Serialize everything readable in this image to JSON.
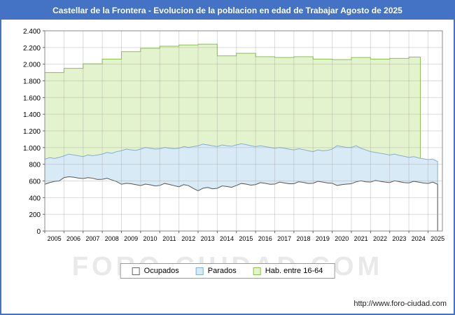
{
  "title_bar": {
    "text": "Castellar de la Frontera - Evolucion de la poblacion en edad de Trabajar Agosto de 2025",
    "bg_color": "#4472c4"
  },
  "watermark": "FORO-CIUDAD.COM",
  "footer": {
    "url": "http://www.foro-ciudad.com"
  },
  "legend": {
    "items": [
      {
        "label": "Ocupados",
        "fill": "#ffffff",
        "stroke": "#666666"
      },
      {
        "label": "Parados",
        "fill": "#d9eaf7",
        "stroke": "#85aecf"
      },
      {
        "label": "Hab. entre 16-64",
        "fill": "#e3f3cd",
        "stroke": "#8cc152"
      }
    ]
  },
  "chart_data": {
    "type": "area",
    "title": "Castellar de la Frontera - Evolucion de la poblacion en edad de Trabajar Agosto de 2025",
    "xlabel": "",
    "ylabel": "",
    "xlim": [
      2005,
      2025.75
    ],
    "ylim": [
      0,
      2400
    ],
    "grid": true,
    "legend_position": "bottom",
    "x_ticks": [
      2005,
      2006,
      2007,
      2008,
      2009,
      2010,
      2011,
      2012,
      2013,
      2014,
      2015,
      2016,
      2017,
      2018,
      2019,
      2020,
      2021,
      2022,
      2023,
      2024,
      2025
    ],
    "y_ticks": [
      0,
      200,
      400,
      600,
      800,
      1000,
      1200,
      1400,
      1600,
      1800,
      2000,
      2200,
      2400
    ],
    "y_tick_labels": [
      "0",
      "200",
      "400",
      "600",
      "800",
      "1.000",
      "1.200",
      "1.400",
      "1.600",
      "1.800",
      "2.000",
      "2.200",
      "2.400"
    ],
    "series": [
      {
        "name": "Hab. entre 16-64",
        "kind": "step",
        "x_start": 2005,
        "x_step": 1,
        "end_x": 2024.6,
        "fill": "#e3f3cd",
        "stroke": "#8cc152",
        "values": [
          1900,
          1950,
          2005,
          2060,
          2150,
          2190,
          2215,
          2230,
          2240,
          2100,
          2130,
          2090,
          2080,
          2090,
          2060,
          2055,
          2080,
          2060,
          2070,
          2085
        ]
      },
      {
        "name": "Parados",
        "kind": "line",
        "x_start": 2005,
        "x_step": 0.25,
        "fill": "#d9eaf7",
        "stroke": "#85aecf",
        "values": [
          860,
          880,
          870,
          882,
          900,
          922,
          912,
          902,
          892,
          912,
          902,
          912,
          922,
          942,
          932,
          952,
          962,
          982,
          972,
          966,
          982,
          1002,
          992,
          982,
          986,
          1002,
          992,
          986,
          992,
          1012,
          1002,
          1012,
          1022,
          1042,
          1032,
          1022,
          1012,
          1032,
          1022,
          1016,
          1032,
          1046,
          1036,
          1022,
          1012,
          1022,
          1012,
          1002,
          992,
          1002,
          992,
          982,
          972,
          986,
          976,
          962,
          952,
          972,
          962,
          966,
          982,
          1022,
          1012,
          1002,
          1002,
          1022,
          992,
          972,
          952,
          942,
          932,
          922,
          912,
          922,
          906,
          896,
          882,
          892,
          876,
          866,
          856,
          862,
          832
        ]
      },
      {
        "name": "Ocupados",
        "kind": "line",
        "x_start": 2005,
        "x_step": 0.25,
        "fill": "#ffffff",
        "stroke": "#555555",
        "values": [
          560,
          580,
          595,
          600,
          640,
          650,
          645,
          635,
          628,
          640,
          632,
          618,
          620,
          632,
          612,
          592,
          560,
          572,
          566,
          556,
          545,
          562,
          554,
          540,
          546,
          570,
          558,
          544,
          530,
          556,
          544,
          510,
          482,
          512,
          522,
          506,
          512,
          540,
          534,
          524,
          546,
          570,
          562,
          550,
          556,
          580,
          572,
          560,
          562,
          586,
          576,
          566,
          566,
          590,
          582,
          570,
          572,
          596,
          586,
          576,
          572,
          546,
          556,
          562,
          566,
          590,
          602,
          590,
          586,
          606,
          596,
          586,
          580,
          602,
          592,
          580,
          576,
          596,
          586,
          576,
          570,
          586,
          560
        ]
      }
    ]
  }
}
